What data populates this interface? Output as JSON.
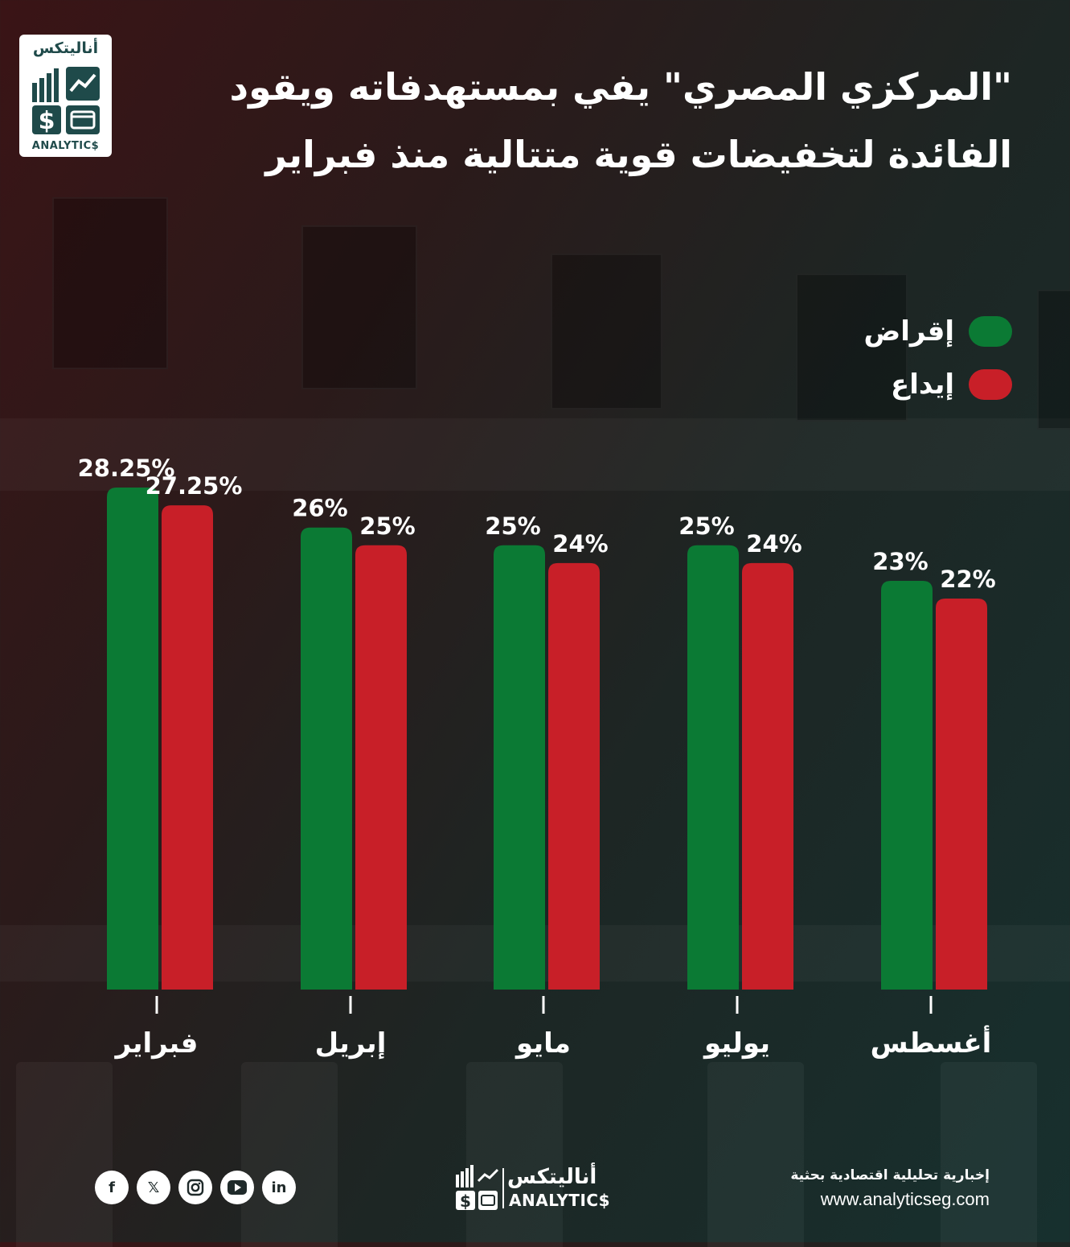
{
  "title_lines": [
    "\"المركزي المصري\" يفي بمستهدفاته ويقود",
    "الفائدة لتخفيضات قوية متتالية منذ فبراير"
  ],
  "logo": {
    "arabic": "أناليتكس",
    "latin": "ANALYTIC$"
  },
  "colors": {
    "lending": "#0b7a34",
    "deposit": "#c81f28",
    "logo_teal": "#1f4a4a"
  },
  "chart_data": {
    "type": "bar",
    "categories": [
      "فبراير",
      "إبريل",
      "مايو",
      "يوليو",
      "أغسطس"
    ],
    "series": [
      {
        "name": "إقراض",
        "values": [
          28.25,
          26,
          25,
          25,
          23
        ],
        "labels": [
          "28.25%",
          "26%",
          "25%",
          "25%",
          "23%"
        ]
      },
      {
        "name": "إيداع",
        "values": [
          27.25,
          25,
          24,
          24,
          22
        ],
        "labels": [
          "27.25%",
          "25%",
          "24%",
          "24%",
          "22%"
        ]
      }
    ],
    "ylim": [
      0,
      29
    ],
    "grid": false,
    "legend_placement": "top-right"
  },
  "footer": {
    "social_icons": [
      "facebook-icon",
      "x-icon",
      "instagram-icon",
      "youtube-icon",
      "linkedin-icon"
    ],
    "logo_arabic": "أناليتكس",
    "logo_latin": "ANALYTIC$",
    "tagline": "إخبارية تحليلية اقتصادية بحثية",
    "url": "www.analyticseg.com"
  }
}
